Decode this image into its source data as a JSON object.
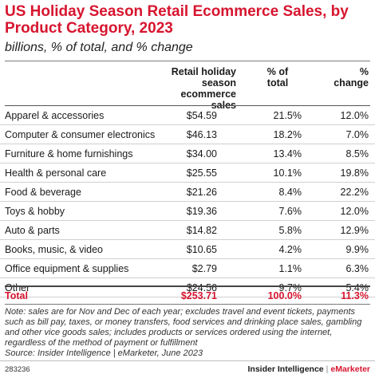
{
  "header": {
    "title": "US Holiday Season Retail Ecommerce Sales, by Product Category, 2023",
    "subtitle": "billions, % of total, and % change"
  },
  "chart_data": {
    "type": "table",
    "title": "US Holiday Season Retail Ecommerce Sales, by Product Category, 2023",
    "subtitle": "billions, % of total, and % change",
    "columns": [
      "Retail holiday\nseason\necommerce sales",
      "% of\ntotal",
      "%\nchange"
    ],
    "rows": [
      {
        "category": "Apparel & accessories",
        "sales": "$54.59",
        "share": "21.5%",
        "change": "12.0%"
      },
      {
        "category": "Computer & consumer electronics",
        "sales": "$46.13",
        "share": "18.2%",
        "change": "7.0%"
      },
      {
        "category": "Furniture & home furnishings",
        "sales": "$34.00",
        "share": "13.4%",
        "change": "8.5%"
      },
      {
        "category": "Health & personal care",
        "sales": "$25.55",
        "share": "10.1%",
        "change": "19.8%"
      },
      {
        "category": "Food & beverage",
        "sales": "$21.26",
        "share": "8.4%",
        "change": "22.2%"
      },
      {
        "category": "Toys & hobby",
        "sales": "$19.36",
        "share": "7.6%",
        "change": "12.0%"
      },
      {
        "category": "Auto & parts",
        "sales": "$14.82",
        "share": "5.8%",
        "change": "12.9%"
      },
      {
        "category": "Books, music, & video",
        "sales": "$10.65",
        "share": "4.2%",
        "change": "9.9%"
      },
      {
        "category": "Office equipment & supplies",
        "sales": "$2.79",
        "share": "1.1%",
        "change": "6.3%"
      },
      {
        "category": "Other",
        "sales": "$24.56",
        "share": "9.7%",
        "change": "5.4%"
      }
    ],
    "total": {
      "category": "Total",
      "sales": "$253.71",
      "share": "100.0%",
      "change": "11.3%"
    }
  },
  "footnotes": {
    "note": "Note: sales are for Nov and Dec of each year; excludes travel and event tickets, payments such as bill pay, taxes, or money transfers, food services and drinking place sales, gambling and other vice goods sales; includes products or services ordered using the internet, regardless of the method of payment or fulfillment",
    "source": "Source: Insider Intelligence | eMarketer, June 2023"
  },
  "footer": {
    "code": "283236",
    "brand_left": "Insider Intelligence",
    "brand_sep": "|",
    "brand_right": "eMarketer"
  },
  "colors": {
    "accent": "#d7152f",
    "text": "#1a1a1a"
  }
}
